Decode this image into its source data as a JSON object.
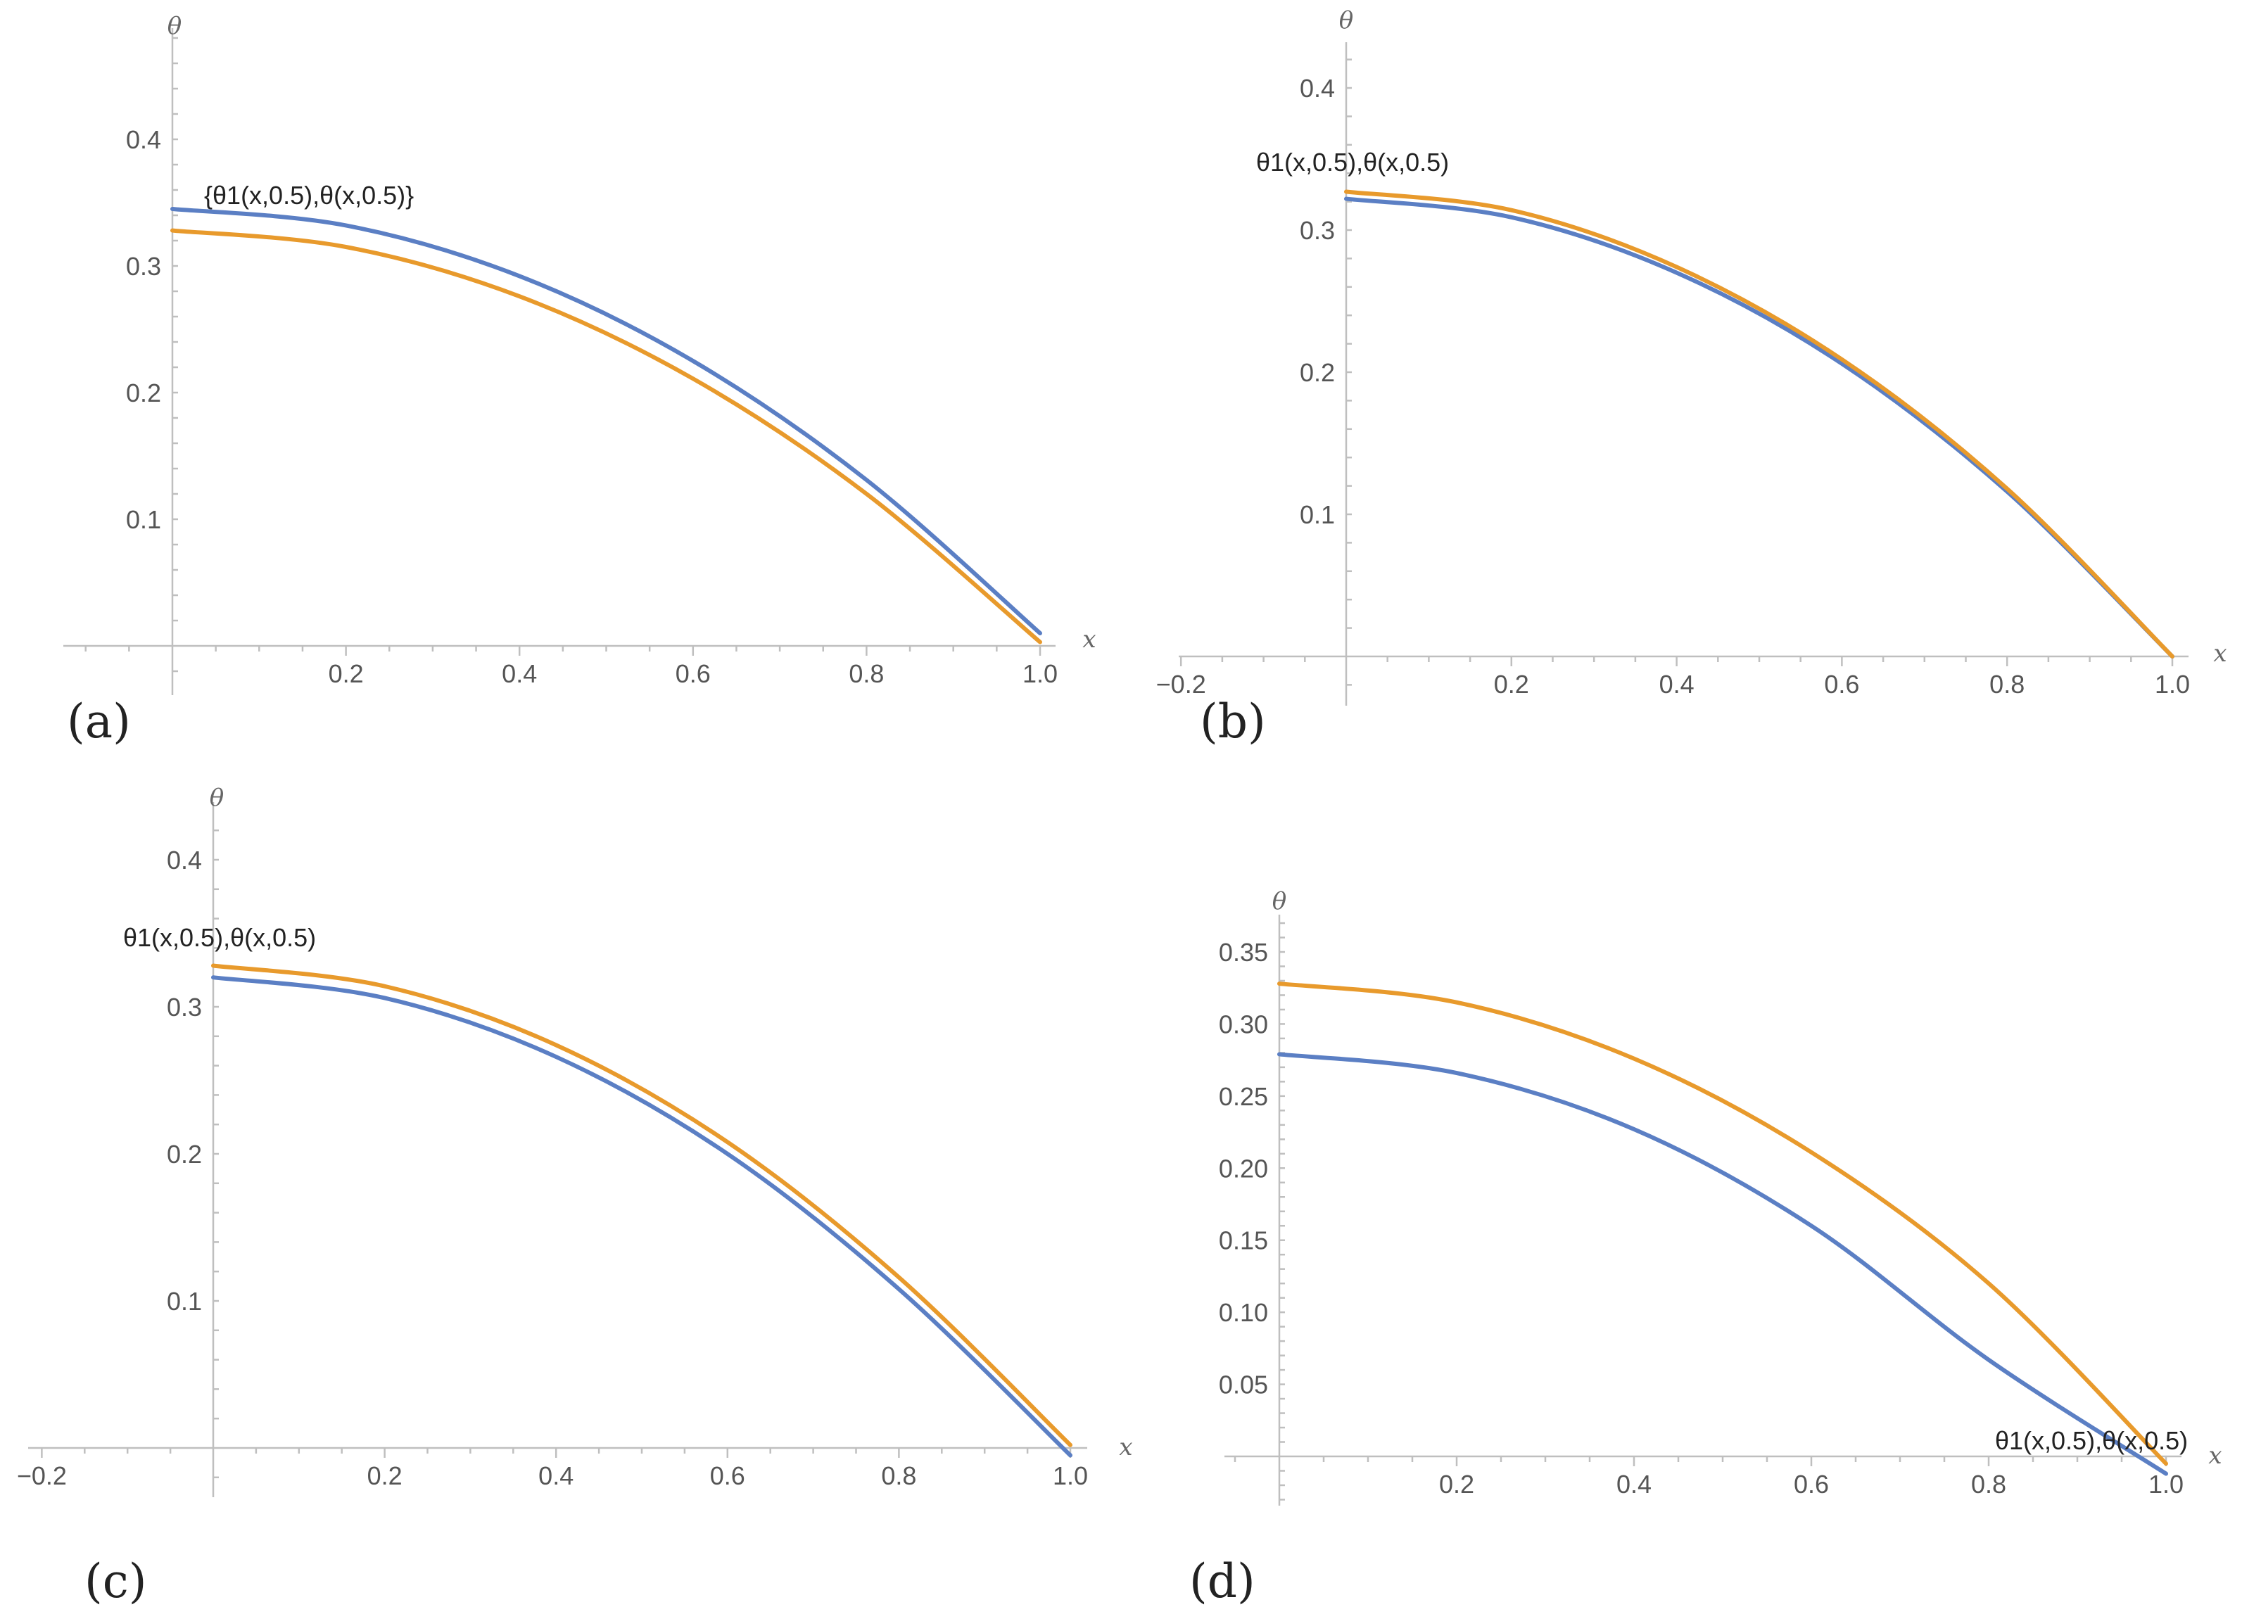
{
  "colors": {
    "theta1": "#5B7FC4",
    "theta": "#E89A2C"
  },
  "chart_data": [
    {
      "panel_label": "(a)",
      "type": "line",
      "xlabel": "x",
      "ylabel": "θ",
      "xlim": [
        -0.13,
        1.05
      ],
      "ylim": [
        -0.005,
        0.47
      ],
      "x_ticks": [
        "0.2",
        "0.4",
        "0.6",
        "0.8",
        "1.0"
      ],
      "y_ticks": [
        "0.1",
        "0.2",
        "0.3",
        "0.4"
      ],
      "annotation": "{θ1(x,0.5),θ(x,0.5)}",
      "series": [
        {
          "color_key": "theta1",
          "x": [
            0,
            0.2,
            0.4,
            0.6,
            0.8,
            1.0
          ],
          "values": [
            0.345,
            0.332,
            0.292,
            0.225,
            0.131,
            0.01
          ]
        },
        {
          "color_key": "theta",
          "x": [
            0,
            0.2,
            0.4,
            0.6,
            0.8,
            1.0
          ],
          "values": [
            0.328,
            0.315,
            0.276,
            0.211,
            0.12,
            0.003
          ]
        }
      ]
    },
    {
      "panel_label": "(b)",
      "type": "line",
      "xlabel": "x",
      "ylabel": "θ",
      "xlim": [
        -0.22,
        1.05
      ],
      "ylim": [
        -0.005,
        0.45
      ],
      "x_ticks": [
        "-0.2",
        "0.2",
        "0.4",
        "0.6",
        "0.8",
        "1.0"
      ],
      "y_ticks": [
        "0.1",
        "0.2",
        "0.3",
        "0.4"
      ],
      "annotation": "θ1(x,0.5),θ(x,0.5)",
      "series": [
        {
          "color_key": "theta1",
          "x": [
            0,
            0.2,
            0.4,
            0.6,
            0.8,
            1.0
          ],
          "values": [
            0.322,
            0.309,
            0.27,
            0.206,
            0.116,
            0.0
          ]
        },
        {
          "color_key": "theta",
          "x": [
            0,
            0.2,
            0.4,
            0.6,
            0.8,
            1.0
          ],
          "values": [
            0.327,
            0.314,
            0.274,
            0.209,
            0.118,
            0.0
          ]
        }
      ]
    },
    {
      "panel_label": "(c)",
      "type": "line",
      "xlabel": "x",
      "ylabel": "θ",
      "xlim": [
        -0.22,
        1.05
      ],
      "ylim": [
        -0.005,
        0.45
      ],
      "x_ticks": [
        "-0.2",
        "0.2",
        "0.4",
        "0.6",
        "0.8",
        "1.0"
      ],
      "y_ticks": [
        "0.1",
        "0.2",
        "0.3",
        "0.4"
      ],
      "annotation": "θ1(x,0.5),θ(x,0.5)",
      "series": [
        {
          "color_key": "theta1",
          "x": [
            0,
            0.2,
            0.4,
            0.6,
            0.8,
            1.0
          ],
          "values": [
            0.32,
            0.306,
            0.266,
            0.2,
            0.108,
            -0.005
          ]
        },
        {
          "color_key": "theta",
          "x": [
            0,
            0.2,
            0.4,
            0.6,
            0.8,
            1.0
          ],
          "values": [
            0.328,
            0.314,
            0.274,
            0.208,
            0.116,
            0.002
          ]
        }
      ]
    },
    {
      "panel_label": "(d)",
      "type": "line",
      "xlabel": "x",
      "ylabel": "θ",
      "xlim": [
        -0.03,
        1.06
      ],
      "ylim": [
        -0.03,
        0.38
      ],
      "x_ticks": [
        "0.2",
        "0.4",
        "0.6",
        "0.8",
        "1.0"
      ],
      "y_ticks": [
        "0.05",
        "0.10",
        "0.15",
        "0.20",
        "0.25",
        "0.30",
        "0.35"
      ],
      "annotation": "θ1(x,0.5),θ(x,0.5)",
      "series": [
        {
          "color_key": "theta1",
          "x": [
            0,
            0.2,
            0.4,
            0.6,
            0.8,
            1.0
          ],
          "values": [
            0.279,
            0.266,
            0.227,
            0.16,
            0.067,
            -0.012
          ]
        },
        {
          "color_key": "theta",
          "x": [
            0,
            0.2,
            0.4,
            0.6,
            0.8,
            1.0
          ],
          "values": [
            0.328,
            0.315,
            0.276,
            0.211,
            0.12,
            -0.005
          ]
        }
      ]
    }
  ]
}
